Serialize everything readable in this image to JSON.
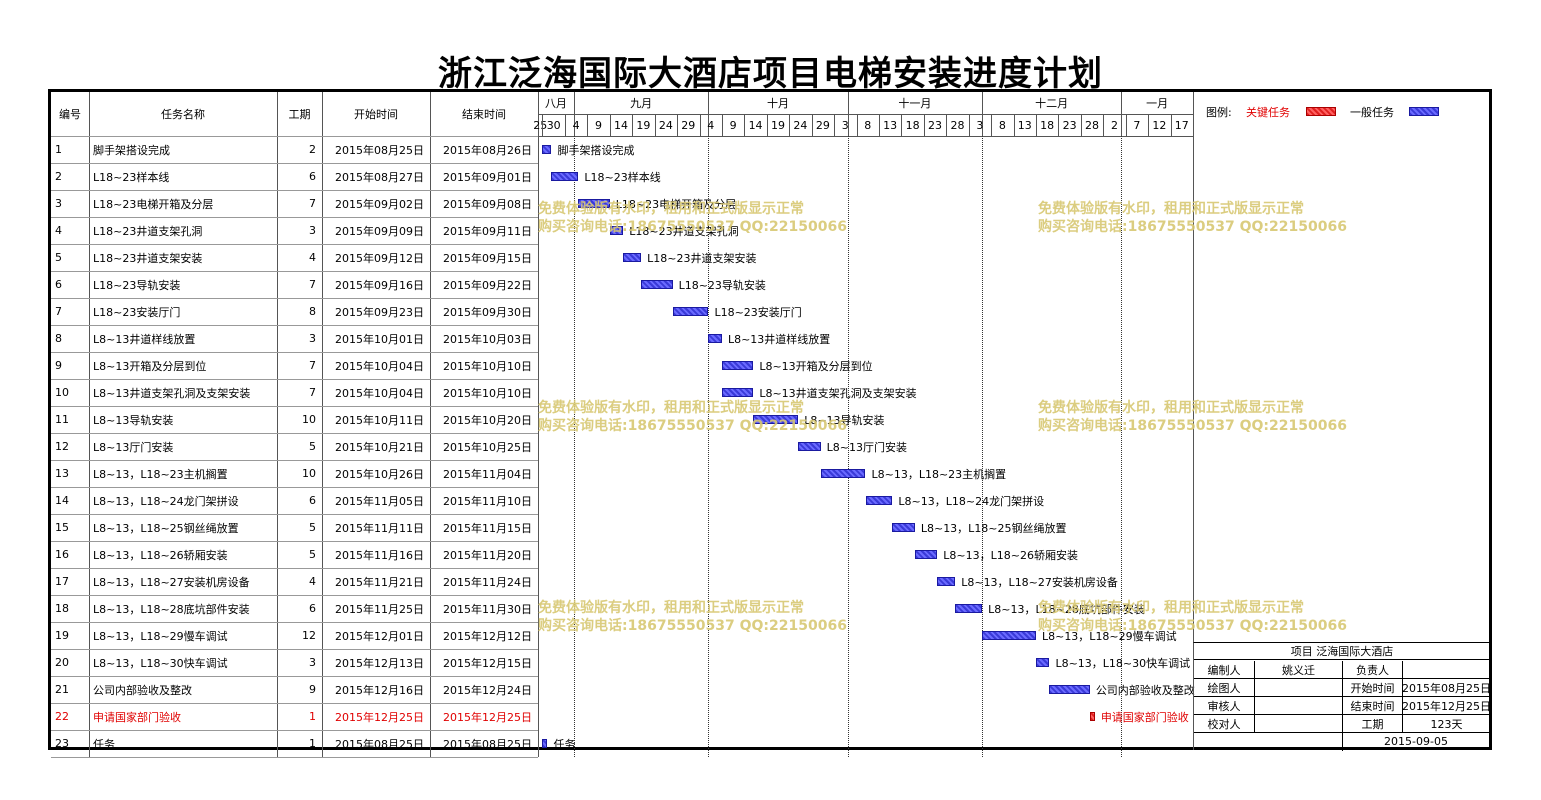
{
  "title": "浙江泛海国际大酒店项目电梯安装进度计划",
  "columns": {
    "id": "编号",
    "name": "任务名称",
    "dur": "工期",
    "start": "开始时间",
    "end": "结束时间"
  },
  "months": [
    "八月",
    "九月",
    "十月",
    "十一月",
    "十二月",
    "一月"
  ],
  "days": [
    "25",
    "30",
    "4",
    "9",
    "14",
    "19",
    "24",
    "29",
    "4",
    "9",
    "14",
    "19",
    "24",
    "29",
    "3",
    "8",
    "13",
    "18",
    "23",
    "28",
    "3",
    "8",
    "13",
    "18",
    "23",
    "28",
    "2",
    "7",
    "12",
    "17"
  ],
  "tasks": [
    {
      "id": "1",
      "name": "脚手架搭设完成",
      "dur": "2",
      "start": "2015年08月25日",
      "end": "2015年08月26日",
      "critical": false
    },
    {
      "id": "2",
      "name": "L18~23样本线",
      "dur": "6",
      "start": "2015年08月27日",
      "end": "2015年09月01日",
      "critical": false
    },
    {
      "id": "3",
      "name": "L18~23电梯开箱及分层",
      "dur": "7",
      "start": "2015年09月02日",
      "end": "2015年09月08日",
      "critical": false
    },
    {
      "id": "4",
      "name": "L18~23井道支架孔洞",
      "dur": "3",
      "start": "2015年09月09日",
      "end": "2015年09月11日",
      "critical": false
    },
    {
      "id": "5",
      "name": "L18~23井道支架安装",
      "dur": "4",
      "start": "2015年09月12日",
      "end": "2015年09月15日",
      "critical": false
    },
    {
      "id": "6",
      "name": "L18~23导轨安装",
      "dur": "7",
      "start": "2015年09月16日",
      "end": "2015年09月22日",
      "critical": false
    },
    {
      "id": "7",
      "name": "L18~23安装厅门",
      "dur": "8",
      "start": "2015年09月23日",
      "end": "2015年09月30日",
      "critical": false
    },
    {
      "id": "8",
      "name": "L8~13井道样线放置",
      "dur": "3",
      "start": "2015年10月01日",
      "end": "2015年10月03日",
      "critical": false
    },
    {
      "id": "9",
      "name": "L8~13开箱及分层到位",
      "dur": "7",
      "start": "2015年10月04日",
      "end": "2015年10月10日",
      "critical": false
    },
    {
      "id": "10",
      "name": "L8~13井道支架孔洞及支架安装",
      "dur": "7",
      "start": "2015年10月04日",
      "end": "2015年10月10日",
      "critical": false
    },
    {
      "id": "11",
      "name": "L8~13导轨安装",
      "dur": "10",
      "start": "2015年10月11日",
      "end": "2015年10月20日",
      "critical": false
    },
    {
      "id": "12",
      "name": "L8~13厅门安装",
      "dur": "5",
      "start": "2015年10月21日",
      "end": "2015年10月25日",
      "critical": false
    },
    {
      "id": "13",
      "name": "L8~13，L18~23主机搁置",
      "dur": "10",
      "start": "2015年10月26日",
      "end": "2015年11月04日",
      "critical": false
    },
    {
      "id": "14",
      "name": "L8~13，L18~24龙门架拼设",
      "dur": "6",
      "start": "2015年11月05日",
      "end": "2015年11月10日",
      "critical": false
    },
    {
      "id": "15",
      "name": "L8~13，L18~25钢丝绳放置",
      "dur": "5",
      "start": "2015年11月11日",
      "end": "2015年11月15日",
      "critical": false
    },
    {
      "id": "16",
      "name": "L8~13，L18~26轿厢安装",
      "dur": "5",
      "start": "2015年11月16日",
      "end": "2015年11月20日",
      "critical": false
    },
    {
      "id": "17",
      "name": "L8~13，L18~27安装机房设备",
      "dur": "4",
      "start": "2015年11月21日",
      "end": "2015年11月24日",
      "critical": false
    },
    {
      "id": "18",
      "name": "L8~13，L18~28底坑部件安装",
      "dur": "6",
      "start": "2015年11月25日",
      "end": "2015年11月30日",
      "critical": false
    },
    {
      "id": "19",
      "name": "L8~13，L18~29慢车调试",
      "dur": "12",
      "start": "2015年12月01日",
      "end": "2015年12月12日",
      "critical": false
    },
    {
      "id": "20",
      "name": "L8~13，L18~30快车调试",
      "dur": "3",
      "start": "2015年12月13日",
      "end": "2015年12月15日",
      "critical": false
    },
    {
      "id": "21",
      "name": "公司内部验收及整改",
      "dur": "9",
      "start": "2015年12月16日",
      "end": "2015年12月24日",
      "critical": false
    },
    {
      "id": "22",
      "name": "申请国家部门验收",
      "dur": "1",
      "start": "2015年12月25日",
      "end": "2015年12月25日",
      "critical": true
    },
    {
      "id": "23",
      "name": "任务",
      "dur": "1",
      "start": "2015年08月25日",
      "end": "2015年08月25日",
      "critical": false
    }
  ],
  "legend": {
    "label": "图例:",
    "critical": "关键任务",
    "normal": "一般任务"
  },
  "info": {
    "project_label": "项目",
    "project_name": "泛海国际大酒店",
    "rows": [
      [
        "编制人",
        "姚义迁",
        "负责人",
        ""
      ],
      [
        "绘图人",
        "",
        "开始时间",
        "2015年08月25日"
      ],
      [
        "审核人",
        "",
        "结束时间",
        "2015年12月25日"
      ],
      [
        "校对人",
        "",
        "工期",
        "123天"
      ]
    ],
    "date": "2015-09-05"
  },
  "watermark": {
    "line1": "免费体验版有水印，租用和正式版显示正常",
    "line2": "购买咨询电话:18675550537 QQ:22150066"
  },
  "colors": {
    "critical": "#e02020",
    "normal": "#3a3ad8",
    "watermark": "#d8c873"
  }
}
